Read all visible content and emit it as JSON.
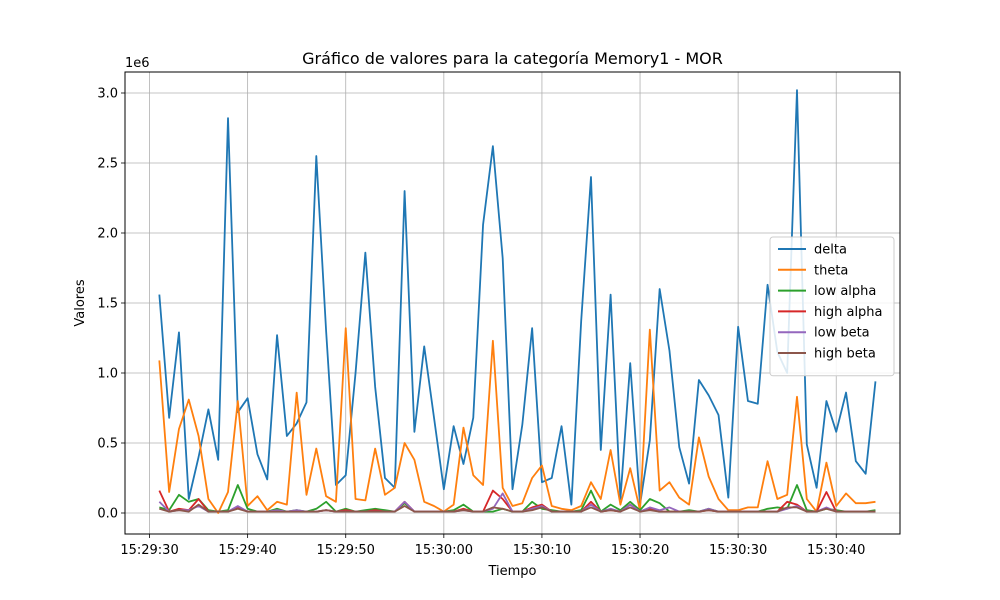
{
  "chart_data": {
    "type": "line",
    "title": "Gráfico de valores para la categoría Memory1 - MOR",
    "xlabel": "Tiempo",
    "ylabel": "Valores",
    "y_offset_label": "1e6",
    "y_multiplier": 1000000,
    "ylim": [
      -0.15,
      3.15
    ],
    "xlim": [
      "15:29:27.5",
      "15:30:46.5"
    ],
    "yticks": [
      {
        "value": 0.0,
        "label": "0.0"
      },
      {
        "value": 0.5,
        "label": "0.5"
      },
      {
        "value": 1.0,
        "label": "1.0"
      },
      {
        "value": 1.5,
        "label": "1.5"
      },
      {
        "value": 2.0,
        "label": "2.0"
      },
      {
        "value": 2.5,
        "label": "2.5"
      },
      {
        "value": 3.0,
        "label": "3.0"
      }
    ],
    "xticks": [
      "15:29:30",
      "15:29:40",
      "15:29:50",
      "15:30:00",
      "15:30:10",
      "15:30:20",
      "15:30:30",
      "15:30:40"
    ],
    "grid": true,
    "legend_position": "center-right",
    "x": [
      "15:29:31",
      "15:29:32",
      "15:29:33",
      "15:29:34",
      "15:29:35",
      "15:29:36",
      "15:29:37",
      "15:29:38",
      "15:29:39",
      "15:29:40",
      "15:29:41",
      "15:29:42",
      "15:29:43",
      "15:29:44",
      "15:29:45",
      "15:29:46",
      "15:29:47",
      "15:29:48",
      "15:29:49",
      "15:29:50",
      "15:29:51",
      "15:29:52",
      "15:29:53",
      "15:29:54",
      "15:29:55",
      "15:29:56",
      "15:29:57",
      "15:29:58",
      "15:29:59",
      "15:30:00",
      "15:30:01",
      "15:30:02",
      "15:30:03",
      "15:30:04",
      "15:30:05",
      "15:30:06",
      "15:30:07",
      "15:30:08",
      "15:30:09",
      "15:30:10",
      "15:30:11",
      "15:30:12",
      "15:30:13",
      "15:30:14",
      "15:30:15",
      "15:30:16",
      "15:30:17",
      "15:30:18",
      "15:30:19",
      "15:30:20",
      "15:30:21",
      "15:30:22",
      "15:30:23",
      "15:30:24",
      "15:30:25",
      "15:30:26",
      "15:30:27",
      "15:30:28",
      "15:30:29",
      "15:30:30",
      "15:30:31",
      "15:30:32",
      "15:30:33",
      "15:30:34",
      "15:30:35",
      "15:30:36",
      "15:30:37",
      "15:30:38",
      "15:30:39",
      "15:30:40",
      "15:30:41",
      "15:30:42",
      "15:30:43",
      "15:30:44"
    ],
    "series": [
      {
        "name": "delta",
        "color": "#1f77b4",
        "values": [
          1.56,
          0.68,
          1.29,
          0.1,
          0.4,
          0.74,
          0.38,
          2.82,
          0.72,
          0.82,
          0.42,
          0.24,
          1.27,
          0.55,
          0.64,
          0.79,
          2.55,
          1.3,
          0.2,
          0.27,
          1.0,
          1.86,
          0.9,
          0.25,
          0.18,
          2.3,
          0.58,
          1.19,
          0.68,
          0.17,
          0.62,
          0.35,
          0.68,
          2.06,
          2.62,
          1.82,
          0.17,
          0.63,
          1.32,
          0.22,
          0.25,
          0.62,
          0.06,
          1.37,
          2.4,
          0.45,
          1.56,
          0.1,
          1.07,
          0.06,
          0.52,
          1.6,
          1.16,
          0.47,
          0.21,
          0.95,
          0.84,
          0.7,
          0.11,
          1.33,
          0.8,
          0.78,
          1.63,
          1.15,
          1.0,
          3.02,
          0.49,
          0.18,
          0.8,
          0.58,
          0.86,
          0.37,
          0.28,
          0.94
        ]
      },
      {
        "name": "theta",
        "color": "#ff7f0e",
        "values": [
          1.09,
          0.15,
          0.6,
          0.81,
          0.55,
          0.1,
          0.0,
          0.15,
          0.8,
          0.05,
          0.12,
          0.02,
          0.08,
          0.06,
          0.86,
          0.13,
          0.46,
          0.12,
          0.08,
          1.32,
          0.1,
          0.09,
          0.46,
          0.13,
          0.18,
          0.5,
          0.38,
          0.08,
          0.05,
          0.01,
          0.06,
          0.61,
          0.27,
          0.2,
          1.23,
          0.18,
          0.05,
          0.07,
          0.25,
          0.34,
          0.05,
          0.03,
          0.02,
          0.05,
          0.22,
          0.1,
          0.45,
          0.06,
          0.32,
          0.02,
          1.31,
          0.16,
          0.22,
          0.11,
          0.06,
          0.54,
          0.26,
          0.1,
          0.02,
          0.02,
          0.04,
          0.04,
          0.37,
          0.1,
          0.13,
          0.83,
          0.1,
          0.01,
          0.36,
          0.05,
          0.14,
          0.07,
          0.07,
          0.08
        ]
      },
      {
        "name": "low alpha",
        "color": "#2ca02c",
        "values": [
          0.04,
          0.02,
          0.13,
          0.08,
          0.1,
          0.02,
          0.01,
          0.02,
          0.2,
          0.03,
          0.01,
          0.01,
          0.03,
          0.01,
          0.02,
          0.01,
          0.03,
          0.08,
          0.01,
          0.03,
          0.01,
          0.02,
          0.03,
          0.02,
          0.01,
          0.07,
          0.01,
          0.01,
          0.01,
          0.01,
          0.02,
          0.06,
          0.01,
          0.01,
          0.01,
          0.03,
          0.01,
          0.01,
          0.08,
          0.03,
          0.02,
          0.01,
          0.01,
          0.02,
          0.16,
          0.01,
          0.06,
          0.02,
          0.08,
          0.02,
          0.1,
          0.07,
          0.01,
          0.01,
          0.02,
          0.01,
          0.03,
          0.01,
          0.01,
          0.01,
          0.01,
          0.01,
          0.03,
          0.04,
          0.03,
          0.2,
          0.02,
          0.01,
          0.03,
          0.02,
          0.01,
          0.01,
          0.01,
          0.02
        ]
      },
      {
        "name": "high alpha",
        "color": "#d62728",
        "values": [
          0.16,
          0.01,
          0.03,
          0.02,
          0.1,
          0.01,
          0.01,
          0.01,
          0.04,
          0.01,
          0.01,
          0.01,
          0.01,
          0.01,
          0.01,
          0.01,
          0.01,
          0.02,
          0.01,
          0.02,
          0.01,
          0.01,
          0.02,
          0.01,
          0.01,
          0.08,
          0.01,
          0.01,
          0.01,
          0.01,
          0.01,
          0.03,
          0.01,
          0.01,
          0.16,
          0.1,
          0.01,
          0.01,
          0.04,
          0.06,
          0.01,
          0.01,
          0.01,
          0.01,
          0.08,
          0.01,
          0.02,
          0.01,
          0.06,
          0.01,
          0.03,
          0.01,
          0.01,
          0.01,
          0.01,
          0.01,
          0.02,
          0.01,
          0.01,
          0.01,
          0.01,
          0.01,
          0.01,
          0.01,
          0.08,
          0.06,
          0.01,
          0.01,
          0.15,
          0.01,
          0.01,
          0.01,
          0.01,
          0.01
        ]
      },
      {
        "name": "low beta",
        "color": "#9467bd",
        "values": [
          0.08,
          0.01,
          0.02,
          0.02,
          0.05,
          0.01,
          0.01,
          0.01,
          0.05,
          0.01,
          0.01,
          0.01,
          0.02,
          0.01,
          0.02,
          0.01,
          0.01,
          0.02,
          0.01,
          0.01,
          0.01,
          0.01,
          0.01,
          0.01,
          0.01,
          0.08,
          0.01,
          0.01,
          0.01,
          0.01,
          0.01,
          0.02,
          0.01,
          0.01,
          0.03,
          0.14,
          0.01,
          0.01,
          0.03,
          0.05,
          0.01,
          0.01,
          0.01,
          0.01,
          0.06,
          0.01,
          0.03,
          0.01,
          0.06,
          0.01,
          0.04,
          0.02,
          0.04,
          0.01,
          0.01,
          0.01,
          0.03,
          0.01,
          0.01,
          0.01,
          0.01,
          0.01,
          0.01,
          0.01,
          0.03,
          0.05,
          0.01,
          0.01,
          0.04,
          0.01,
          0.01,
          0.01,
          0.01,
          0.01
        ]
      },
      {
        "name": "high beta",
        "color": "#8c564b",
        "values": [
          0.03,
          0.01,
          0.02,
          0.01,
          0.06,
          0.01,
          0.01,
          0.01,
          0.03,
          0.01,
          0.01,
          0.01,
          0.01,
          0.01,
          0.01,
          0.01,
          0.01,
          0.02,
          0.01,
          0.01,
          0.01,
          0.01,
          0.01,
          0.01,
          0.01,
          0.05,
          0.01,
          0.01,
          0.01,
          0.01,
          0.01,
          0.02,
          0.01,
          0.01,
          0.04,
          0.03,
          0.01,
          0.01,
          0.02,
          0.04,
          0.01,
          0.01,
          0.01,
          0.01,
          0.04,
          0.01,
          0.02,
          0.01,
          0.04,
          0.01,
          0.02,
          0.01,
          0.01,
          0.01,
          0.01,
          0.01,
          0.02,
          0.01,
          0.01,
          0.01,
          0.01,
          0.01,
          0.01,
          0.01,
          0.04,
          0.04,
          0.01,
          0.01,
          0.03,
          0.01,
          0.01,
          0.01,
          0.01,
          0.01
        ]
      }
    ]
  }
}
